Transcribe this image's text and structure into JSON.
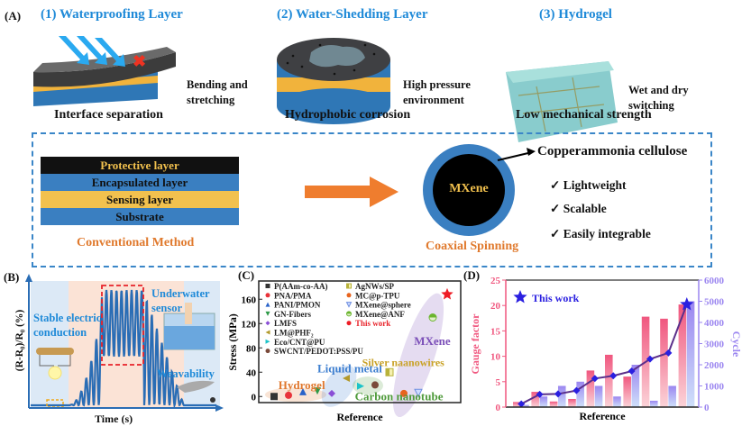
{
  "panel_a": {
    "label": "(A)",
    "sections": [
      {
        "title": "(1) Waterproofing Layer",
        "note_lines": [
          "Bending and",
          "stretching"
        ],
        "caption": "Interface separation"
      },
      {
        "title": "(2) Water-Shedding Layer",
        "note_lines": [
          "High pressure",
          "environment"
        ],
        "caption": "Hydrophobic corrosion"
      },
      {
        "title": "(3) Hydrogel",
        "note_lines": [
          "Wet and dry",
          "switching"
        ],
        "caption": "Low mechanical strength"
      }
    ],
    "conventional": {
      "layers": [
        "Protective layer",
        "Encapsulated layer",
        "Sensing layer",
        "Substrate"
      ],
      "caption": "Conventional Method"
    },
    "coaxial": {
      "core_label": "MXene",
      "shell_label": "Copperammonia cellulose",
      "caption": "Coaxial Spinning",
      "benefits": [
        "Lightweight",
        "Scalable",
        "Easily integrable"
      ],
      "check_icon": "checkmark-icon"
    },
    "colors": {
      "title_blue": "#1f8ad8",
      "accent_orange": "#e07a2e",
      "layer_blue": "#3a7fc1",
      "layer_yellow": "#f2c14e",
      "layer_black": "#111111"
    }
  },
  "panel_b": {
    "label": "(B)",
    "ylabel": "(R-R₀)/R₀ (%)",
    "xlabel": "Time (s)",
    "annotations": [
      "Stable electric",
      "conduction",
      "Underwater",
      "sensor",
      "Weavability"
    ],
    "line_color": "#2a6db5"
  },
  "chart_data": [
    {
      "panel_label": "(C)",
      "type": "scatter",
      "xlabel": "Reference",
      "ylabel": "Stress (MPa)",
      "ylim": [
        -10,
        190
      ],
      "yticks": [
        0,
        40,
        80,
        120,
        160
      ],
      "legend_placement": "top-left",
      "series": [
        {
          "name": "P(AAm-co-AA)",
          "x": 1,
          "y": 0,
          "marker": "square",
          "color": "#333333"
        },
        {
          "name": "PNA/PMA",
          "x": 2,
          "y": 2,
          "marker": "circle",
          "color": "#e8333a"
        },
        {
          "name": "PANI/PMON",
          "x": 3,
          "y": 8,
          "marker": "triangle-up",
          "color": "#2a63c9"
        },
        {
          "name": "GN-Fibers",
          "x": 4,
          "y": 9,
          "marker": "triangle-down",
          "color": "#2e9a48"
        },
        {
          "name": "LMFS",
          "x": 5,
          "y": 5,
          "marker": "diamond",
          "color": "#8a4fd6"
        },
        {
          "name": "LM@PHF₂",
          "x": 6,
          "y": 30,
          "marker": "triangle-left",
          "color": "#b29a2c"
        },
        {
          "name": "Eco/CNT@PU",
          "x": 7,
          "y": 17,
          "marker": "triangle-right",
          "color": "#1cc3c9"
        },
        {
          "name": "SWCNT/PEDOT:PSS/PU",
          "x": 8,
          "y": 19,
          "marker": "circle",
          "color": "#7a4a3a"
        },
        {
          "name": "AgNWs/SP",
          "x": 9,
          "y": 40,
          "marker": "half-square",
          "color": "#b8b23a"
        },
        {
          "name": "MC@p-TPU",
          "x": 10,
          "y": 5,
          "marker": "circle",
          "color": "#e8641e"
        },
        {
          "name": "MXene@sphere",
          "x": 11,
          "y": 6,
          "marker": "triangle-down-open",
          "color": "#6f8fe0"
        },
        {
          "name": "MXene@ANF",
          "x": 12,
          "y": 130,
          "marker": "half-circle",
          "color": "#6bb52e"
        },
        {
          "name": "This work",
          "x": 13,
          "y": 168,
          "marker": "star",
          "color": "#ee1c25"
        }
      ],
      "groups": [
        {
          "label": "Hydrogel",
          "color": "#e0782e"
        },
        {
          "label": "Liquid metal",
          "color": "#3e7fd0"
        },
        {
          "label": "Carbon nanotube",
          "color": "#4e9a3a"
        },
        {
          "label": "Silver naanowires",
          "color": "#c9a227"
        },
        {
          "label": "MXene",
          "color": "#7b4fb8"
        }
      ]
    },
    {
      "panel_label": "(D)",
      "type": "bar",
      "xlabel": "Reference",
      "ylabel_left": "Gauge factor",
      "ylabel_right": "Cycle",
      "ylim_left": [
        0,
        25
      ],
      "ylim_right": [
        0,
        6000
      ],
      "yticks_left": [
        0,
        5,
        10,
        15,
        20,
        25
      ],
      "yticks_right": [
        0,
        1000,
        2000,
        3000,
        4000,
        5000,
        6000
      ],
      "legend": "This work",
      "legend_placement": "top-left",
      "categories": [
        1,
        2,
        3,
        4,
        5,
        6,
        7,
        8,
        9,
        10
      ],
      "series": [
        {
          "axis": "left",
          "type": "bar",
          "values": [
            1,
            3,
            1.1,
            1.6,
            7.2,
            10.3,
            6,
            17.8,
            17.4,
            20.2
          ],
          "color": "#f0577f"
        },
        {
          "axis": "right",
          "type": "bar",
          "values": [
            100,
            500,
            1000,
            1200,
            1000,
            500,
            2000,
            300,
            1000,
            5000
          ],
          "color": "#9b86f0"
        },
        {
          "axis": "right",
          "type": "line",
          "values": [
            150,
            600,
            620,
            780,
            1350,
            1480,
            1700,
            2270,
            2560,
            4850
          ],
          "color": "#5b2f8a",
          "marker_color": "#2a1fe0"
        }
      ],
      "colors": {
        "left_axis": "#f0577f",
        "right_axis": "#9b86f0",
        "star": "#2a1fe0"
      }
    }
  ]
}
